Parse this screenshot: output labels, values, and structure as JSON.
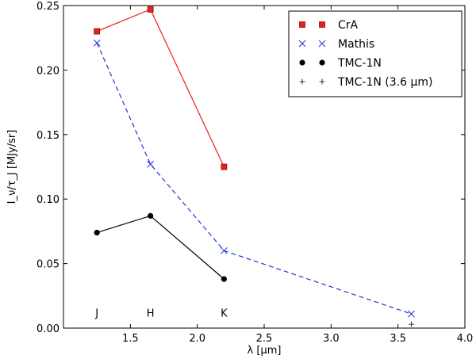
{
  "chart_data": {
    "type": "line",
    "title": "",
    "xlabel": "λ [μm]",
    "ylabel": "I_ν/τ_J  [MJy/sr]",
    "xlim": [
      1.0,
      4.0
    ],
    "ylim": [
      0.0,
      0.25
    ],
    "xticks": [
      1.5,
      2.0,
      2.5,
      3.0,
      3.5,
      4.0
    ],
    "xtick_labels": [
      "1.5",
      "2.0",
      "2.5",
      "3.0",
      "3.5",
      "4.0"
    ],
    "yticks": [
      0.0,
      0.05,
      0.1,
      0.15,
      0.2,
      0.25
    ],
    "ytick_labels": [
      "0.00",
      "0.05",
      "0.10",
      "0.15",
      "0.20",
      "0.25"
    ],
    "grid": false,
    "legend_position": "top-right",
    "series": [
      {
        "name": "CrA",
        "color": "#e8201a",
        "marker": "square",
        "line": "solid",
        "x": [
          1.25,
          1.65,
          2.2
        ],
        "y": [
          0.23,
          0.247,
          0.125
        ]
      },
      {
        "name": "Mathis",
        "color": "#1f35d8",
        "marker": "x",
        "line": "dashed",
        "x": [
          1.25,
          1.65,
          2.2,
          3.6
        ],
        "y": [
          0.221,
          0.127,
          0.06,
          0.011
        ]
      },
      {
        "name": "TMC-1N",
        "color": "#000000",
        "marker": "circle",
        "line": "solid",
        "x": [
          1.25,
          1.65,
          2.2
        ],
        "y": [
          0.074,
          0.087,
          0.038
        ]
      },
      {
        "name": "TMC-1N (3.6 μm)",
        "color": "#000000",
        "marker": "plus",
        "line": "none",
        "x": [
          3.6
        ],
        "y": [
          0.003
        ]
      }
    ],
    "annotations": [
      {
        "text": "J",
        "x": 1.25,
        "y": 0.012
      },
      {
        "text": "H",
        "x": 1.65,
        "y": 0.012
      },
      {
        "text": "K",
        "x": 2.2,
        "y": 0.012
      }
    ]
  }
}
